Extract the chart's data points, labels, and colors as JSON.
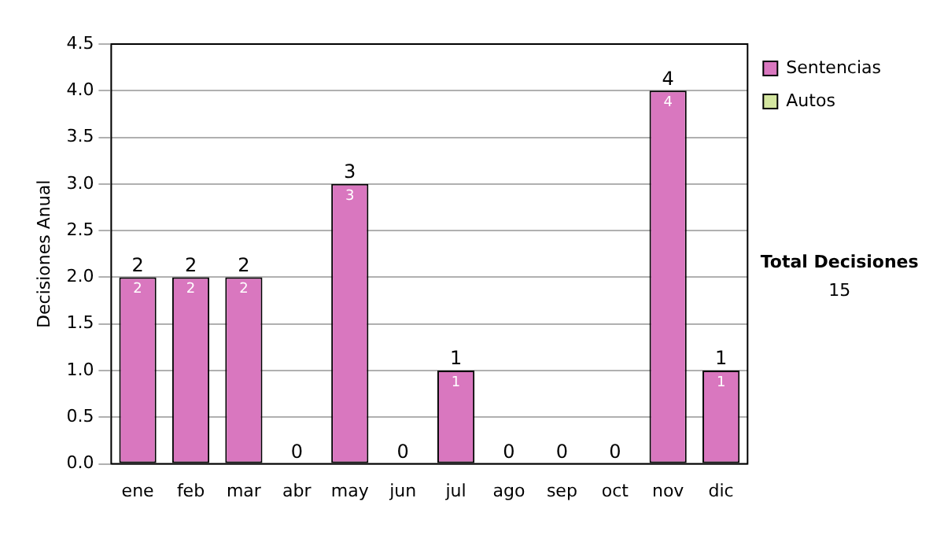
{
  "chart_data": {
    "type": "bar",
    "ylabel": "Decisiones Anual",
    "categories": [
      "ene",
      "feb",
      "mar",
      "abr",
      "may",
      "jun",
      "jul",
      "ago",
      "sep",
      "oct",
      "nov",
      "dic"
    ],
    "series": [
      {
        "name": "Sentencias",
        "color": "#d977bf",
        "values": [
          2,
          2,
          2,
          0,
          3,
          0,
          1,
          0,
          0,
          0,
          4,
          1
        ],
        "value_labels": [
          "2",
          "2",
          "2",
          null,
          "3",
          null,
          "1",
          null,
          null,
          null,
          "4",
          "1"
        ]
      },
      {
        "name": "Autos",
        "color": "#d4e6a0",
        "values": [
          0,
          0,
          0,
          0,
          0,
          0,
          0,
          0,
          0,
          0,
          0,
          0
        ]
      }
    ],
    "stacked": true,
    "totals": [
      "2",
      "2",
      "2",
      "0",
      "3",
      "0",
      "1",
      "0",
      "0",
      "0",
      "4",
      "1"
    ],
    "ylim": [
      0,
      4.5
    ],
    "yticks": [
      {
        "value": 0,
        "label": "0.0"
      },
      0.5,
      {
        "value": 1,
        "label": "1.0"
      },
      1.5,
      {
        "value": 2,
        "label": "2.0"
      },
      2.5,
      {
        "value": 3,
        "label": "3.0"
      },
      3.5,
      {
        "value": 4,
        "label": "4.0"
      },
      4.5
    ],
    "grid": "y",
    "legend": "right",
    "annotations": [
      "Total Decisiones",
      "15"
    ]
  }
}
